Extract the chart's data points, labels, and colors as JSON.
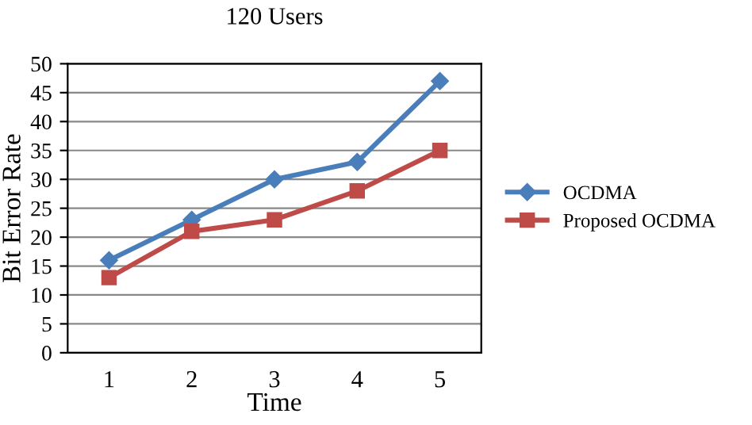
{
  "chart_data": {
    "type": "line",
    "title": "120 Users",
    "xlabel": "Time",
    "ylabel": "Bit Error Rate",
    "categories": [
      "1",
      "2",
      "3",
      "4",
      "5"
    ],
    "series": [
      {
        "name": "OCDMA",
        "color": "#4a7ebb",
        "values": [
          16,
          23,
          30,
          33,
          47
        ],
        "marker": "diamond"
      },
      {
        "name": "Proposed OCDMA",
        "color": "#be4b48",
        "values": [
          13,
          21,
          23,
          28,
          35
        ],
        "marker": "square"
      }
    ],
    "ylim": [
      0,
      50
    ],
    "yticks": [
      0,
      5,
      10,
      15,
      20,
      25,
      30,
      35,
      40,
      45,
      50
    ],
    "grid": "y",
    "legend": "right",
    "line_style": "solid"
  }
}
